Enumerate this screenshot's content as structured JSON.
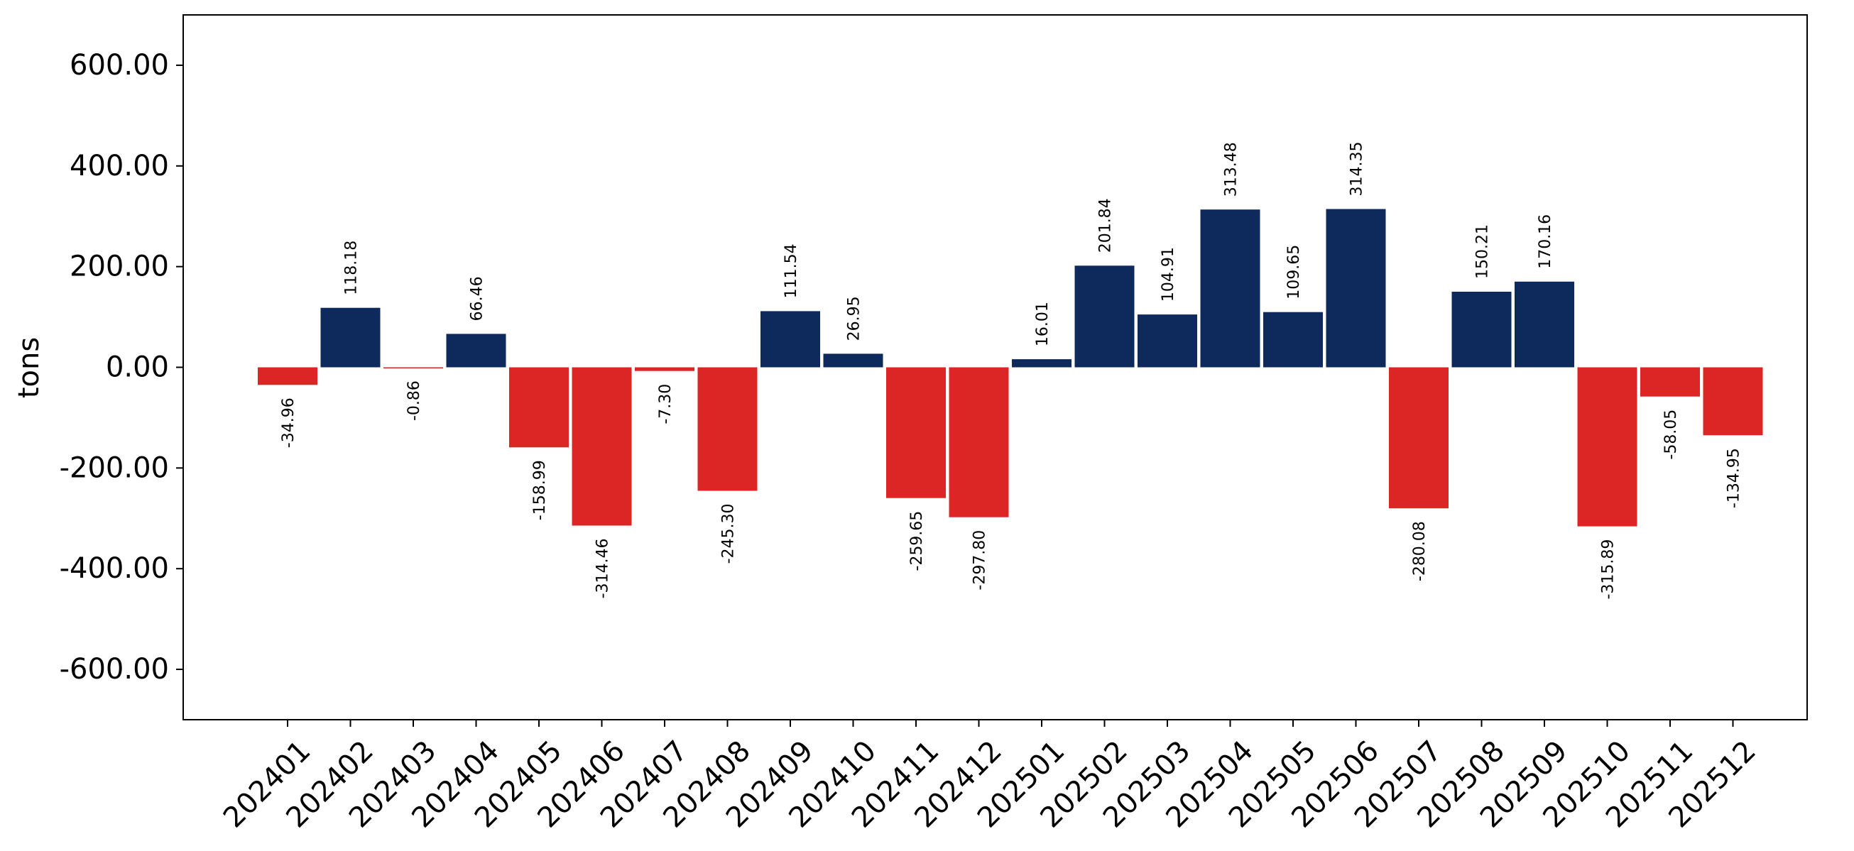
{
  "chart_data": {
    "type": "bar",
    "title": "",
    "xlabel": "",
    "ylabel": "tons",
    "ylim": [
      -700,
      700
    ],
    "yticks": [
      -600,
      -400,
      -200,
      0,
      200,
      400,
      600
    ],
    "ytick_labels": [
      "-600.00",
      "-400.00",
      "-200.00",
      "0.00",
      "200.00",
      "400.00",
      "600.00"
    ],
    "grid": false,
    "legend": "none",
    "colors": {
      "positive": "#0e2a5c",
      "negative": "#dc2626"
    },
    "categories": [
      "202401",
      "202402",
      "202403",
      "202404",
      "202405",
      "202406",
      "202407",
      "202408",
      "202409",
      "202410",
      "202411",
      "202412",
      "202501",
      "202502",
      "202503",
      "202504",
      "202505",
      "202506",
      "202507",
      "202508",
      "202509",
      "202510",
      "202511",
      "202512"
    ],
    "values": [
      -34.96,
      118.18,
      -0.86,
      66.46,
      -158.99,
      -314.46,
      -7.3,
      -245.3,
      111.54,
      26.95,
      -259.65,
      -297.8,
      16.01,
      201.84,
      104.91,
      313.48,
      109.65,
      314.35,
      -280.08,
      150.21,
      170.16,
      -315.89,
      -58.05,
      -134.95
    ],
    "value_labels": [
      "-34.96",
      "118.18",
      "-0.86",
      "66.46",
      "-158.99",
      "-314.46",
      "-7.30",
      "-245.30",
      "111.54",
      "26.95",
      "-259.65",
      "-297.80",
      "16.01",
      "201.84",
      "104.91",
      "313.48",
      "109.65",
      "314.35",
      "-280.08",
      "150.21",
      "170.16",
      "-315.89",
      "-58.05",
      "-134.95"
    ]
  }
}
